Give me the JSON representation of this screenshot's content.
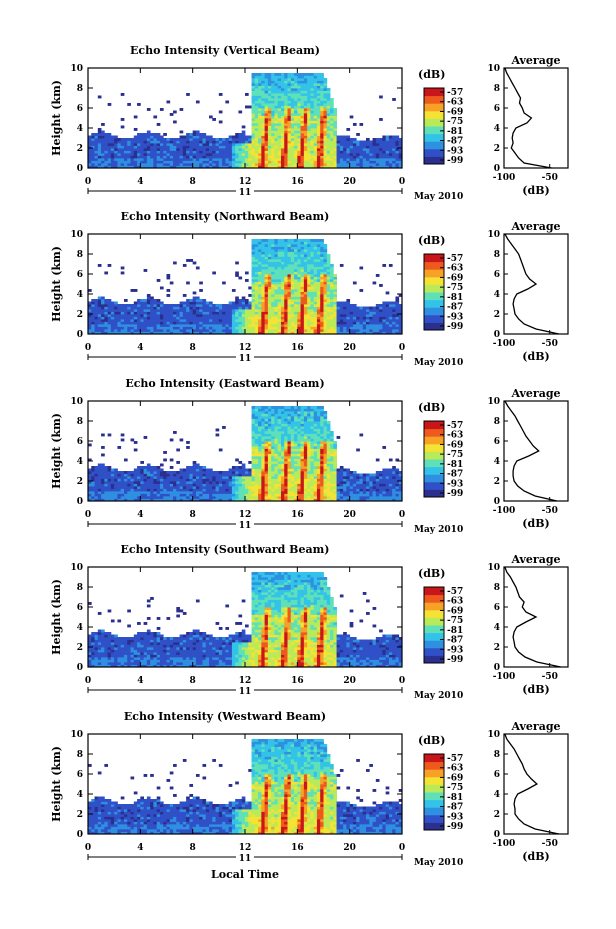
{
  "figure": {
    "x_axis_title": "Local Time",
    "date_label": "May 2010",
    "colorbar_unit": "(dB)",
    "profile_title": "Average",
    "profile_xlabel": "(dB)",
    "ylabel": "Height (km)"
  },
  "chart_data": [
    {
      "type": "heatmap",
      "title": "Echo Intensity (Vertical Beam)",
      "xlabel": "",
      "ylabel": "Height (km)",
      "x_ticks": [
        "0",
        "4",
        "8",
        "12",
        "16",
        "20",
        "0"
      ],
      "xlim": [
        0,
        24
      ],
      "y_ticks": [
        "0",
        "2",
        "4",
        "6",
        "8",
        "10"
      ],
      "ylim": [
        0,
        10
      ],
      "day_label": "11",
      "colorbar": {
        "unit": "(dB)",
        "ticks": [
          "-57",
          "-63",
          "-69",
          "-75",
          "-81",
          "-87",
          "-93",
          "-99"
        ],
        "range": [
          -99,
          -57
        ]
      },
      "profile": {
        "title": "Average",
        "xlabel": "(dB)",
        "x_ticks": [
          "-100",
          "-50"
        ],
        "xlim": [
          -100,
          -30
        ],
        "heights": [
          0,
          0.5,
          1,
          1.5,
          2,
          2.5,
          3,
          3.5,
          4,
          4.5,
          5,
          5.5,
          6,
          6.5,
          7,
          7.5,
          8,
          8.5,
          9,
          9.5,
          10
        ],
        "values": [
          -48,
          -78,
          -84,
          -88,
          -92,
          -90,
          -91,
          -90,
          -87,
          -75,
          -70,
          -78,
          -80,
          -83,
          -82,
          -85,
          -88,
          -91,
          -94,
          -97,
          -99
        ]
      }
    },
    {
      "type": "heatmap",
      "title": "Echo Intensity (Northward Beam)",
      "xlabel": "",
      "ylabel": "Height (km)",
      "x_ticks": [
        "0",
        "4",
        "8",
        "12",
        "16",
        "20",
        "0"
      ],
      "xlim": [
        0,
        24
      ],
      "y_ticks": [
        "0",
        "2",
        "4",
        "6",
        "8",
        "10"
      ],
      "ylim": [
        0,
        10
      ],
      "day_label": "11",
      "colorbar": {
        "unit": "(dB)",
        "ticks": [
          "-57",
          "-63",
          "-69",
          "-75",
          "-81",
          "-87",
          "-93",
          "-99"
        ],
        "range": [
          -99,
          -57
        ]
      },
      "profile": {
        "title": "Average",
        "xlabel": "(dB)",
        "x_ticks": [
          "-100",
          "-50"
        ],
        "xlim": [
          -100,
          -30
        ],
        "heights": [
          0,
          0.5,
          1,
          1.5,
          2,
          2.5,
          3,
          3.5,
          4,
          4.5,
          5,
          5.5,
          6,
          6.5,
          7,
          7.5,
          8,
          8.5,
          9,
          9.5,
          10
        ],
        "values": [
          -40,
          -65,
          -78,
          -84,
          -88,
          -89,
          -90,
          -89,
          -86,
          -74,
          -65,
          -72,
          -76,
          -78,
          -80,
          -82,
          -84,
          -88,
          -92,
          -96,
          -99
        ]
      }
    },
    {
      "type": "heatmap",
      "title": "Echo Intensity (Eastward Beam)",
      "xlabel": "",
      "ylabel": "Height (km)",
      "x_ticks": [
        "0",
        "4",
        "8",
        "12",
        "16",
        "20",
        "0"
      ],
      "xlim": [
        0,
        24
      ],
      "y_ticks": [
        "0",
        "2",
        "4",
        "6",
        "8",
        "10"
      ],
      "ylim": [
        0,
        10
      ],
      "day_label": "11",
      "colorbar": {
        "unit": "(dB)",
        "ticks": [
          "-57",
          "-63",
          "-69",
          "-75",
          "-81",
          "-87",
          "-93",
          "-99"
        ],
        "range": [
          -99,
          -57
        ]
      },
      "profile": {
        "title": "Average",
        "xlabel": "(dB)",
        "x_ticks": [
          "-100",
          "-50"
        ],
        "xlim": [
          -100,
          -30
        ],
        "heights": [
          0,
          0.5,
          1,
          1.5,
          2,
          2.5,
          3,
          3.5,
          4,
          4.5,
          5,
          5.5,
          6,
          6.5,
          7,
          7.5,
          8,
          8.5,
          9,
          9.5,
          10
        ],
        "values": [
          -42,
          -66,
          -78,
          -85,
          -89,
          -90,
          -90,
          -89,
          -86,
          -73,
          -62,
          -68,
          -72,
          -76,
          -79,
          -82,
          -85,
          -88,
          -92,
          -96,
          -99
        ]
      }
    },
    {
      "type": "heatmap",
      "title": "Echo Intensity (Southward Beam)",
      "xlabel": "",
      "ylabel": "Height (km)",
      "x_ticks": [
        "0",
        "4",
        "8",
        "12",
        "16",
        "20",
        "0"
      ],
      "xlim": [
        0,
        24
      ],
      "y_ticks": [
        "0",
        "2",
        "4",
        "6",
        "8",
        "10"
      ],
      "ylim": [
        0,
        10
      ],
      "day_label": "11",
      "colorbar": {
        "unit": "(dB)",
        "ticks": [
          "-57",
          "-63",
          "-69",
          "-75",
          "-81",
          "-87",
          "-93",
          "-99"
        ],
        "range": [
          -99,
          -57
        ]
      },
      "profile": {
        "title": "Average",
        "xlabel": "(dB)",
        "x_ticks": [
          "-100",
          "-50"
        ],
        "xlim": [
          -100,
          -30
        ],
        "heights": [
          0,
          0.5,
          1,
          1.5,
          2,
          2.5,
          3,
          3.5,
          4,
          4.5,
          5,
          5.5,
          6,
          6.5,
          7,
          7.5,
          8,
          8.5,
          9,
          9.5,
          10
        ],
        "values": [
          -38,
          -64,
          -77,
          -84,
          -88,
          -89,
          -90,
          -89,
          -86,
          -76,
          -65,
          -76,
          -80,
          -78,
          -83,
          -85,
          -87,
          -90,
          -93,
          -97,
          -99
        ]
      }
    },
    {
      "type": "heatmap",
      "title": "Echo Intensity (Westward Beam)",
      "xlabel": "Local Time",
      "ylabel": "Height (km)",
      "x_ticks": [
        "0",
        "4",
        "8",
        "12",
        "16",
        "20",
        "0"
      ],
      "xlim": [
        0,
        24
      ],
      "y_ticks": [
        "0",
        "2",
        "4",
        "6",
        "8",
        "10"
      ],
      "ylim": [
        0,
        10
      ],
      "day_label": "11",
      "colorbar": {
        "unit": "(dB)",
        "ticks": [
          "-57",
          "-63",
          "-69",
          "-75",
          "-81",
          "-87",
          "-93",
          "-99"
        ],
        "range": [
          -99,
          -57
        ]
      },
      "profile": {
        "title": "Average",
        "xlabel": "(dB)",
        "x_ticks": [
          "-100",
          "-50"
        ],
        "xlim": [
          -100,
          -30
        ],
        "heights": [
          0,
          0.5,
          1,
          1.5,
          2,
          2.5,
          3,
          3.5,
          4,
          4.5,
          5,
          5.5,
          6,
          6.5,
          7,
          7.5,
          8,
          8.5,
          9,
          9.5,
          10
        ],
        "values": [
          -40,
          -66,
          -78,
          -84,
          -88,
          -88,
          -89,
          -88,
          -85,
          -74,
          -64,
          -70,
          -75,
          -78,
          -80,
          -83,
          -86,
          -89,
          -93,
          -97,
          -99
        ]
      }
    }
  ],
  "colormap": [
    "#2b2f8e",
    "#3050c8",
    "#2f8fe0",
    "#33c3e8",
    "#5fe0b8",
    "#b8ea5a",
    "#f4e234",
    "#f7a226",
    "#ee5a1e",
    "#c8161a"
  ]
}
